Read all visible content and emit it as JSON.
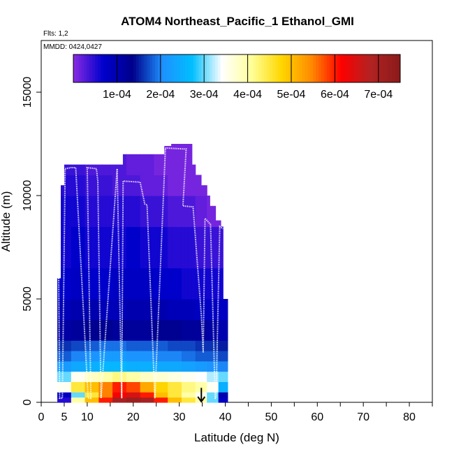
{
  "header": {
    "title": "ATOM4 Northeast_Pacific_1 Ethanol_GMI",
    "flights_label": "Flts: 1,2",
    "dates_label": "MMDD: 0424,0427"
  },
  "colors": {
    "flight_track": "#ffffff",
    "arrow": "#000000",
    "colorbar_stops": [
      "#8a2be2",
      "#0000cd",
      "#00008b",
      "#1e90ff",
      "#00bfff",
      "#ffffff",
      "#ffff99",
      "#ffd700",
      "#ff8c00",
      "#ff0000",
      "#b22222",
      "#8b1a1a"
    ]
  },
  "chart_data": {
    "type": "heatmap",
    "title": "ATOM4 Northeast_Pacific_1 Ethanol_GMI",
    "xlabel": "Latitude (deg N)",
    "ylabel": "Altitude (m)",
    "xlim": [
      0,
      85
    ],
    "ylim": [
      0,
      17500
    ],
    "x_ticks": [
      0,
      5,
      10,
      20,
      30,
      40,
      50,
      60,
      70,
      80
    ],
    "y_ticks": [
      0,
      5000,
      10000,
      15000
    ],
    "colorbar": {
      "min": 0,
      "max": 0.00075,
      "tick_values": [
        0.0001,
        0.0002,
        0.0003,
        0.0004,
        0.0005,
        0.0006,
        0.0007
      ],
      "tick_labels": [
        "1e-04",
        "2e-04",
        "3e-04",
        "4e-04",
        "5e-04",
        "6e-04",
        "7e-04"
      ]
    },
    "columns": [
      {
        "lat": 3.8,
        "top": 6000
      },
      {
        "lat": 4.3,
        "top": 8500
      },
      {
        "lat": 4.8,
        "top": 10500
      },
      {
        "lat": 5.3,
        "top": 11500
      },
      {
        "lat": 6.5,
        "top": 11500
      },
      {
        "lat": 8.0,
        "top": 11500
      },
      {
        "lat": 9.5,
        "top": 11500
      },
      {
        "lat": 11.0,
        "top": 11500
      },
      {
        "lat": 12.5,
        "top": 11500
      },
      {
        "lat": 14.0,
        "top": 11500
      },
      {
        "lat": 15.5,
        "top": 11500
      },
      {
        "lat": 17.0,
        "top": 11500
      },
      {
        "lat": 18.5,
        "top": 12000
      },
      {
        "lat": 20.0,
        "top": 12000
      },
      {
        "lat": 21.5,
        "top": 12000
      },
      {
        "lat": 23.0,
        "top": 12000
      },
      {
        "lat": 24.5,
        "top": 12000
      },
      {
        "lat": 26.0,
        "top": 12000
      },
      {
        "lat": 27.5,
        "top": 12400
      },
      {
        "lat": 29.0,
        "top": 12500
      },
      {
        "lat": 30.5,
        "top": 12500
      },
      {
        "lat": 32.0,
        "top": 12500
      },
      {
        "lat": 33.2,
        "top": 11500
      },
      {
        "lat": 34.2,
        "top": 11000
      },
      {
        "lat": 35.2,
        "top": 10500
      },
      {
        "lat": 36.2,
        "top": 10000
      },
      {
        "lat": 37.2,
        "top": 9500
      },
      {
        "lat": 38.2,
        "top": 8800
      },
      {
        "lat": 39.3,
        "top": 8500
      },
      {
        "lat": 40.0,
        "top": 5000
      }
    ],
    "layers": [
      {
        "bottom": 0,
        "top": 250,
        "values": [
          5e-05,
          0.0004,
          0.0005,
          0.0006,
          0.0007,
          0.00072,
          0.0007,
          0.0006,
          0.0005,
          0.00045,
          0.0004,
          0.0003,
          8e-05
        ]
      },
      {
        "bottom": 250,
        "top": 500,
        "values": [
          8e-05,
          0.0003,
          0.00045,
          0.00055,
          0.00062,
          0.00065,
          0.0006,
          0.0005,
          0.00045,
          0.0004,
          0.00035,
          0.0003,
          0.0001
        ]
      },
      {
        "bottom": 500,
        "top": 1000,
        "values": [
          0.00035,
          0.00045,
          0.0005,
          0.00055,
          0.0006,
          0.00058,
          0.00052,
          0.00048,
          0.00045,
          0.00042,
          0.0004,
          0.00035,
          0.00025
        ]
      },
      {
        "bottom": 1000,
        "top": 1500,
        "values": [
          0.0003,
          0.00035,
          0.00038,
          0.0004,
          0.00042,
          0.0004,
          0.00038,
          0.00037,
          0.00036,
          0.00035,
          0.00034,
          0.00032,
          0.0003
        ]
      },
      {
        "bottom": 1500,
        "top": 2000,
        "values": [
          0.00022,
          0.00024,
          0.00025,
          0.00026,
          0.00026,
          0.00025,
          0.00025,
          0.00024,
          0.00024,
          0.00023,
          0.00022,
          0.00021,
          0.0002
        ]
      },
      {
        "bottom": 2000,
        "top": 2500,
        "values": [
          0.00018,
          0.0002,
          0.00021,
          0.00022,
          0.00022,
          0.00021,
          0.00021,
          0.0002,
          0.0002,
          0.00019,
          0.00018,
          0.00018,
          0.00017
        ]
      },
      {
        "bottom": 2500,
        "top": 3000,
        "values": [
          0.00016,
          0.00017,
          0.00018,
          0.00019,
          0.00019,
          0.00018,
          0.00018,
          0.00018,
          0.00017,
          0.00017,
          0.00016,
          0.00016,
          0.00015
        ]
      },
      {
        "bottom": 3000,
        "top": 4000,
        "values": [
          0.00011,
          0.00012,
          0.00013,
          0.00013,
          0.00012,
          0.00012,
          0.00012,
          0.00013,
          0.00013,
          0.00012,
          0.00012,
          0.00011,
          0.0001
        ]
      },
      {
        "bottom": 4000,
        "top": 5000,
        "values": [
          9e-05,
          0.0001,
          0.0001,
          9e-05,
          9e-05,
          0.0001,
          0.0001,
          0.0001,
          9e-05,
          9e-05,
          8e-05,
          8e-05,
          8e-05
        ]
      },
      {
        "bottom": 5000,
        "top": 6500,
        "values": [
          7e-05,
          8e-05,
          7e-05,
          7e-05,
          8e-05,
          8e-05,
          8e-05,
          7e-05,
          7e-05,
          6e-05,
          6e-05,
          6e-05,
          6e-05
        ]
      },
      {
        "bottom": 6500,
        "top": 8500,
        "values": [
          6e-05,
          7e-05,
          6e-05,
          6e-05,
          6e-05,
          7e-05,
          6e-05,
          6e-05,
          5e-05,
          5e-05,
          4e-05,
          4e-05,
          4e-05
        ]
      },
      {
        "bottom": 8500,
        "top": 10000,
        "values": [
          6e-05,
          6e-05,
          5e-05,
          5e-05,
          5e-05,
          5e-05,
          4e-05,
          4e-05,
          3e-05,
          3e-05,
          2e-05,
          1e-05,
          1e-05
        ]
      },
      {
        "bottom": 10000,
        "top": 11000,
        "values": [
          5e-05,
          5e-05,
          4e-05,
          4e-05,
          3e-05,
          3e-05,
          2e-05,
          2e-05,
          1e-05,
          1e-05,
          1e-05,
          1e-05,
          1e-05
        ]
      },
      {
        "bottom": 11000,
        "top": 12500,
        "values": [
          4e-05,
          4e-05,
          3e-05,
          3e-05,
          3e-05,
          2e-05,
          2e-05,
          1e-05,
          1e-05,
          1e-05,
          1e-05,
          1e-05,
          1e-05
        ]
      }
    ],
    "layer_lat_edges": [
      3.5,
      6.5,
      9.5,
      12.5,
      15.5,
      18.5,
      21.5,
      24.5,
      27.5,
      30.5,
      33.5,
      36.0,
      38.5,
      40.5
    ],
    "flight_track": [
      {
        "lat": 3.8,
        "alt": 6000
      },
      {
        "lat": 4.0,
        "alt": 200
      },
      {
        "lat": 4.6,
        "alt": 200
      },
      {
        "lat": 5.2,
        "alt": 11300
      },
      {
        "lat": 6.5,
        "alt": 11350
      },
      {
        "lat": 7.5,
        "alt": 11350
      },
      {
        "lat": 10.2,
        "alt": 200
      },
      {
        "lat": 10.8,
        "alt": 200
      },
      {
        "lat": 10.0,
        "alt": 11350
      },
      {
        "lat": 12.0,
        "alt": 11300
      },
      {
        "lat": 12.3,
        "alt": 10700
      },
      {
        "lat": 13.0,
        "alt": 200
      },
      {
        "lat": 16.5,
        "alt": 11300
      },
      {
        "lat": 17.5,
        "alt": 200
      },
      {
        "lat": 17.8,
        "alt": 10700
      },
      {
        "lat": 21.5,
        "alt": 10650
      },
      {
        "lat": 22.5,
        "alt": 9600
      },
      {
        "lat": 23.0,
        "alt": 9550
      },
      {
        "lat": 24.7,
        "alt": 200
      },
      {
        "lat": 27.0,
        "alt": 12300
      },
      {
        "lat": 31.5,
        "alt": 12250
      },
      {
        "lat": 30.8,
        "alt": 9500
      },
      {
        "lat": 33.0,
        "alt": 9450
      },
      {
        "lat": 34.8,
        "alt": 4200
      },
      {
        "lat": 35.2,
        "alt": 2400
      },
      {
        "lat": 35.6,
        "alt": 8900
      },
      {
        "lat": 36.8,
        "alt": 8600
      },
      {
        "lat": 37.8,
        "alt": 200
      },
      {
        "lat": 38.0,
        "alt": 200
      },
      {
        "lat": 38.8,
        "alt": 8500
      },
      {
        "lat": 39.5,
        "alt": 8400
      }
    ],
    "arrow": {
      "lat": 34.8,
      "alt_top": 700,
      "alt_bottom": 0
    }
  }
}
